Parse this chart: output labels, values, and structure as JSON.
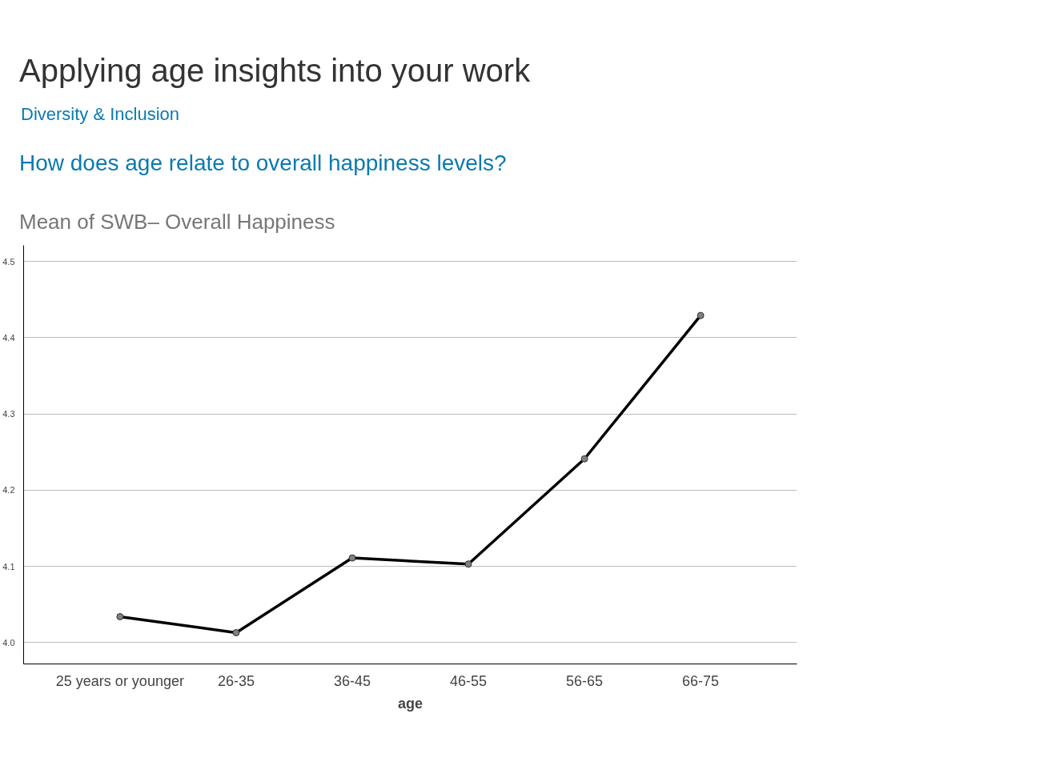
{
  "chart_data": {
    "type": "line",
    "title": "Applying age insights into your work",
    "subtitle": "Diversity & Inclusion",
    "annotations": [
      "How does age relate to overall happiness levels?",
      "Mean of SWB– Overall Happiness"
    ],
    "xlabel": "age",
    "categories": [
      "25 years or younger",
      "26-35",
      "36-45",
      "46-55",
      "56-65",
      "66-75"
    ],
    "series": [
      {
        "color": "#000000",
        "values": [
          4.034,
          4.013,
          4.111,
          4.103,
          4.241,
          4.429
        ]
      }
    ],
    "ylim": [
      3.972,
      4.521
    ],
    "yticks": [
      {
        "value": 4.0,
        "label": "4.0"
      },
      4.1,
      4.2,
      4.3,
      4.4,
      4.5
    ],
    "grid": "y",
    "marker": "circle",
    "line_style": "solid"
  }
}
